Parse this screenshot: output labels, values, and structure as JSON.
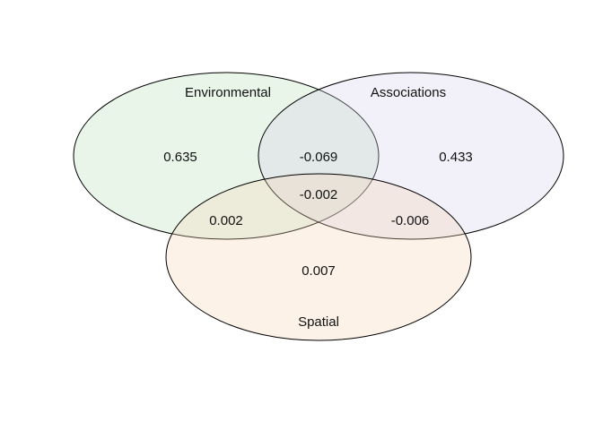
{
  "venn": {
    "sets": [
      {
        "label": "Environmental",
        "fill": "#b9dfb9",
        "opacity": 0.3
      },
      {
        "label": "Associations",
        "fill": "#d4cce8",
        "opacity": 0.3
      },
      {
        "label": "Spatial",
        "fill": "#f6d5b4",
        "opacity": 0.3
      }
    ],
    "regions": {
      "environmental_only": "0.635",
      "associations_only": "0.433",
      "spatial_only": "0.007",
      "environmental_associations": "-0.069",
      "environmental_spatial": "0.002",
      "associations_spatial": "-0.006",
      "all_three": "-0.002"
    }
  }
}
